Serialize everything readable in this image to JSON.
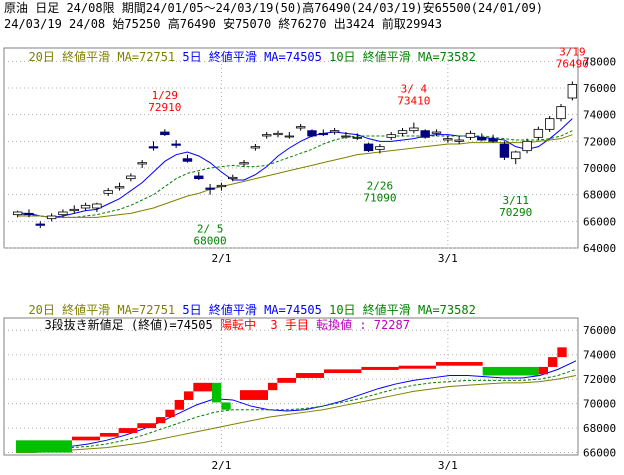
{
  "header": {
    "line1": "原油 日足 24/08限 期間24/01/05～24/03/19(50)高76490(24/03/19)安65500(24/01/09)",
    "line2": "24/03/19 24/08 始75250 高76490 安75070 終76270 出3424 前取29943"
  },
  "top_panel": {
    "legend": {
      "ma20": "20日 終値平滑 MA=72751",
      "ma5": "5日 終値平滑 MA=74505",
      "ma10": "10日 終値平滑 MA=73582"
    },
    "annotations": [
      {
        "date": "1/29",
        "value": "72910",
        "color": "#ff0000"
      },
      {
        "date": "2/ 5",
        "value": "68000",
        "color": "#008000"
      },
      {
        "date": "2/26",
        "value": "71090",
        "color": "#008000"
      },
      {
        "date": "3/ 4",
        "value": "73410",
        "color": "#ff0000"
      },
      {
        "date": "3/11",
        "value": "70290",
        "color": "#008000"
      },
      {
        "date": "3/19",
        "value": "76490",
        "color": "#ff0000"
      }
    ]
  },
  "bottom_panel": {
    "legend": {
      "ma20": "20日 終値平滑 MA=72751",
      "ma5": "5日 終値平滑 MA=74505",
      "ma10": "10日 終値平滑 MA=73582"
    },
    "status": {
      "title": "3段抜き新値足 (終値)=74505",
      "trend": "陽転中",
      "count_num": "3",
      "count_label": "手目",
      "reversal": "転換値 : 72287"
    }
  },
  "colors": {
    "up": "#ff0000",
    "down": "#00c000",
    "blue_candle": "#000080",
    "ma5": "#0000ff",
    "ma10": "#008000",
    "ma20": "#808000"
  },
  "chart_data": [
    {
      "type": "candlestick",
      "title": "原油 日足",
      "x_ticks": [
        "2/1",
        "3/1"
      ],
      "y_ticks": [
        64000,
        66000,
        68000,
        70000,
        72000,
        74000,
        76000,
        78000
      ],
      "ylim": [
        64000,
        79000
      ],
      "grid": true,
      "candles": [
        {
          "o": 66500,
          "h": 66800,
          "l": 66300,
          "c": 66700
        },
        {
          "o": 66600,
          "h": 66900,
          "l": 66300,
          "c": 66500
        },
        {
          "o": 65800,
          "h": 66000,
          "l": 65500,
          "c": 65700
        },
        {
          "o": 66200,
          "h": 66600,
          "l": 66000,
          "c": 66400
        },
        {
          "o": 66500,
          "h": 66900,
          "l": 66300,
          "c": 66700
        },
        {
          "o": 66800,
          "h": 67200,
          "l": 66600,
          "c": 66900
        },
        {
          "o": 67000,
          "h": 67400,
          "l": 66800,
          "c": 67200
        },
        {
          "o": 67000,
          "h": 67400,
          "l": 66700,
          "c": 67300
        },
        {
          "o": 68100,
          "h": 68500,
          "l": 67900,
          "c": 68300
        },
        {
          "o": 68500,
          "h": 68900,
          "l": 68300,
          "c": 68600
        },
        {
          "o": 69200,
          "h": 69600,
          "l": 69000,
          "c": 69400
        },
        {
          "o": 70300,
          "h": 70600,
          "l": 70000,
          "c": 70400
        },
        {
          "o": 71600,
          "h": 72000,
          "l": 71300,
          "c": 71500
        },
        {
          "o": 72700,
          "h": 72910,
          "l": 72400,
          "c": 72500
        },
        {
          "o": 71800,
          "h": 72100,
          "l": 71500,
          "c": 71700
        },
        {
          "o": 70700,
          "h": 71000,
          "l": 70400,
          "c": 70500
        },
        {
          "o": 69400,
          "h": 69700,
          "l": 69100,
          "c": 69200
        },
        {
          "o": 68500,
          "h": 68800,
          "l": 68000,
          "c": 68400
        },
        {
          "o": 68600,
          "h": 68900,
          "l": 68300,
          "c": 68700
        },
        {
          "o": 69200,
          "h": 69500,
          "l": 69000,
          "c": 69300
        },
        {
          "o": 70300,
          "h": 70600,
          "l": 70100,
          "c": 70400
        },
        {
          "o": 71500,
          "h": 71800,
          "l": 71300,
          "c": 71600
        },
        {
          "o": 72400,
          "h": 72700,
          "l": 72200,
          "c": 72500
        },
        {
          "o": 72500,
          "h": 72800,
          "l": 72300,
          "c": 72600
        },
        {
          "o": 72400,
          "h": 72700,
          "l": 72200,
          "c": 72400
        },
        {
          "o": 73000,
          "h": 73300,
          "l": 72800,
          "c": 73100
        },
        {
          "o": 72800,
          "h": 72900,
          "l": 72300,
          "c": 72400
        },
        {
          "o": 72600,
          "h": 72900,
          "l": 72400,
          "c": 72500
        },
        {
          "o": 72700,
          "h": 73000,
          "l": 72500,
          "c": 72800
        },
        {
          "o": 72400,
          "h": 72700,
          "l": 72200,
          "c": 72400
        },
        {
          "o": 72300,
          "h": 72600,
          "l": 72100,
          "c": 72300
        },
        {
          "o": 71800,
          "h": 71900,
          "l": 71200,
          "c": 71300
        },
        {
          "o": 71400,
          "h": 71800,
          "l": 71090,
          "c": 71600
        },
        {
          "o": 72300,
          "h": 72700,
          "l": 72100,
          "c": 72500
        },
        {
          "o": 72600,
          "h": 73000,
          "l": 72400,
          "c": 72800
        },
        {
          "o": 72800,
          "h": 73410,
          "l": 72600,
          "c": 73000
        },
        {
          "o": 72800,
          "h": 72900,
          "l": 72200,
          "c": 72300
        },
        {
          "o": 72600,
          "h": 72900,
          "l": 72400,
          "c": 72700
        },
        {
          "o": 72100,
          "h": 72400,
          "l": 71900,
          "c": 72200
        },
        {
          "o": 72000,
          "h": 72400,
          "l": 71800,
          "c": 72100
        },
        {
          "o": 72300,
          "h": 72800,
          "l": 72100,
          "c": 72600
        },
        {
          "o": 72300,
          "h": 72600,
          "l": 72000,
          "c": 72100
        },
        {
          "o": 72200,
          "h": 72500,
          "l": 71900,
          "c": 72000
        },
        {
          "o": 71800,
          "h": 72000,
          "l": 70600,
          "c": 70800
        },
        {
          "o": 70700,
          "h": 71300,
          "l": 70290,
          "c": 71200
        },
        {
          "o": 71300,
          "h": 72200,
          "l": 71100,
          "c": 72000
        },
        {
          "o": 72300,
          "h": 73100,
          "l": 72100,
          "c": 72900
        },
        {
          "o": 72900,
          "h": 73900,
          "l": 72700,
          "c": 73700
        },
        {
          "o": 73700,
          "h": 74800,
          "l": 73500,
          "c": 74600
        },
        {
          "o": 75250,
          "h": 76490,
          "l": 75070,
          "c": 76270
        }
      ],
      "series": [
        {
          "name": "5日",
          "values": [
            66600,
            66600,
            66400,
            66300,
            66400,
            66600,
            66800,
            66900,
            67300,
            67700,
            68300,
            68900,
            69700,
            70500,
            71000,
            71200,
            70900,
            70400,
            69700,
            69100,
            69100,
            69500,
            70100,
            70900,
            71500,
            72000,
            72400,
            72600,
            72700,
            72600,
            72500,
            72200,
            72000,
            72000,
            72100,
            72200,
            72400,
            72500,
            72500,
            72400,
            72400,
            72300,
            72200,
            72100,
            71600,
            71400,
            71600,
            72200,
            72900,
            73700
          ]
        },
        {
          "name": "10日",
          "values": [
            66500,
            66500,
            66400,
            66300,
            66300,
            66300,
            66400,
            66500,
            66700,
            66900,
            67200,
            67600,
            68000,
            68600,
            69200,
            69600,
            69800,
            70000,
            70100,
            70200,
            70100,
            70100,
            70200,
            70500,
            70800,
            71100,
            71400,
            71800,
            72100,
            72300,
            72400,
            72400,
            72400,
            72400,
            72400,
            72400,
            72400,
            72400,
            72400,
            72400,
            72400,
            72400,
            72300,
            72200,
            72100,
            72100,
            72100,
            72200,
            72400,
            72800
          ]
        },
        {
          "name": "20日",
          "values": [
            66400,
            66400,
            66400,
            66300,
            66300,
            66300,
            66300,
            66300,
            66400,
            66500,
            66600,
            66800,
            67000,
            67300,
            67600,
            67900,
            68100,
            68400,
            68600,
            68800,
            69000,
            69200,
            69400,
            69600,
            69800,
            70000,
            70200,
            70400,
            70600,
            70800,
            71000,
            71100,
            71200,
            71300,
            71400,
            71500,
            71600,
            71700,
            71800,
            71800,
            71900,
            71900,
            71900,
            71900,
            71900,
            71900,
            72000,
            72100,
            72200,
            72500
          ]
        }
      ]
    },
    {
      "type": "new_price_bars",
      "title": "3段抜き新値足 (終値)",
      "x_ticks": [
        "2/1",
        "3/1"
      ],
      "y_ticks": [
        66000,
        68000,
        70000,
        72000,
        74000,
        76000
      ],
      "ylim": [
        65800,
        77000
      ],
      "grid": true,
      "bars": [
        {
          "dir": "down",
          "lo": 66000,
          "hi": 67000,
          "from": 0,
          "to": 6
        },
        {
          "dir": "up",
          "lo": 67000,
          "hi": 67300,
          "from": 6,
          "to": 9
        },
        {
          "dir": "up",
          "lo": 67300,
          "hi": 67600,
          "from": 9,
          "to": 11
        },
        {
          "dir": "up",
          "lo": 67600,
          "hi": 68000,
          "from": 11,
          "to": 13
        },
        {
          "dir": "up",
          "lo": 68000,
          "hi": 68400,
          "from": 13,
          "to": 15
        },
        {
          "dir": "up",
          "lo": 68400,
          "hi": 68900,
          "from": 15,
          "to": 16
        },
        {
          "dir": "up",
          "lo": 68900,
          "hi": 69500,
          "from": 16,
          "to": 17
        },
        {
          "dir": "up",
          "lo": 69500,
          "hi": 70300,
          "from": 17,
          "to": 18
        },
        {
          "dir": "up",
          "lo": 70300,
          "hi": 71000,
          "from": 18,
          "to": 19
        },
        {
          "dir": "up",
          "lo": 71000,
          "hi": 71700,
          "from": 19,
          "to": 21
        },
        {
          "dir": "down",
          "lo": 70100,
          "hi": 71700,
          "from": 21,
          "to": 22
        },
        {
          "dir": "down",
          "lo": 69500,
          "hi": 70100,
          "from": 22,
          "to": 23
        },
        {
          "dir": "up",
          "lo": 70300,
          "hi": 71100,
          "from": 24,
          "to": 27
        },
        {
          "dir": "up",
          "lo": 71100,
          "hi": 71700,
          "from": 27,
          "to": 28
        },
        {
          "dir": "up",
          "lo": 71700,
          "hi": 72100,
          "from": 28,
          "to": 30
        },
        {
          "dir": "up",
          "lo": 72100,
          "hi": 72500,
          "from": 30,
          "to": 33
        },
        {
          "dir": "up",
          "lo": 72500,
          "hi": 72800,
          "from": 33,
          "to": 37
        },
        {
          "dir": "up",
          "lo": 72800,
          "hi": 73000,
          "from": 37,
          "to": 41
        },
        {
          "dir": "up",
          "lo": 73000,
          "hi": 73100,
          "from": 41,
          "to": 45
        },
        {
          "dir": "up",
          "lo": 73100,
          "hi": 73400,
          "from": 45,
          "to": 50
        },
        {
          "dir": "down",
          "lo": 72300,
          "hi": 73000,
          "from": 50,
          "to": 56
        },
        {
          "dir": "up",
          "lo": 72400,
          "hi": 73000,
          "from": 56,
          "to": 57
        },
        {
          "dir": "up",
          "lo": 73000,
          "hi": 73800,
          "from": 57,
          "to": 58
        },
        {
          "dir": "up",
          "lo": 73800,
          "hi": 74600,
          "from": 58,
          "to": 59
        }
      ],
      "series": [
        {
          "name": "5日",
          "values": [
            66300,
            66300,
            66400,
            66500,
            66700,
            67000,
            67400,
            67900,
            68500,
            69200,
            69900,
            70400,
            70300,
            69800,
            69500,
            69400,
            69500,
            69800,
            70200,
            70700,
            71200,
            71600,
            71900,
            72100,
            72300,
            72300,
            72200,
            72100,
            72100,
            72300,
            72800,
            73500
          ]
        },
        {
          "name": "10日",
          "values": [
            66200,
            66200,
            66300,
            66400,
            66500,
            66700,
            67000,
            67400,
            67900,
            68400,
            68900,
            69300,
            69500,
            69500,
            69500,
            69500,
            69600,
            69800,
            70100,
            70400,
            70800,
            71200,
            71500,
            71700,
            71800,
            71900,
            71900,
            71900,
            71900,
            72000,
            72300,
            72800
          ]
        },
        {
          "name": "20日",
          "values": [
            66000,
            66000,
            66100,
            66200,
            66300,
            66400,
            66600,
            66800,
            67100,
            67400,
            67700,
            68000,
            68300,
            68600,
            68900,
            69100,
            69300,
            69500,
            69800,
            70100,
            70400,
            70700,
            71000,
            71200,
            71400,
            71500,
            71600,
            71700,
            71700,
            71800,
            72000,
            72300
          ]
        }
      ]
    }
  ]
}
